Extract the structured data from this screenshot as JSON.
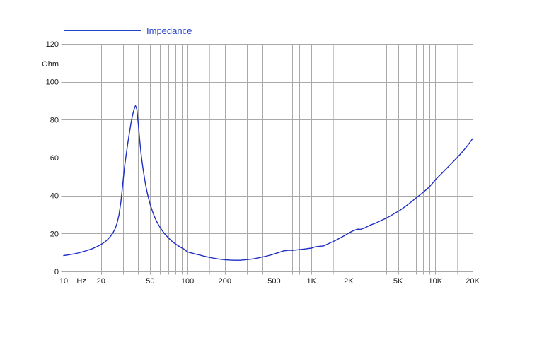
{
  "page": {
    "background": "#ffffff"
  },
  "legend": {
    "label": "Impedance",
    "color": "#2343cc"
  },
  "chart_data": {
    "type": "line",
    "title": "",
    "grid_on": true,
    "legend_position": "top-left",
    "grid_color": "#a9a9a9",
    "grid_color_light": "#c9c9c9",
    "tick_label_color": "#1a1a1a",
    "x_axis": {
      "scale": "log",
      "min": 10,
      "max": 20000,
      "unit_label": "Hz",
      "unit_label_at": 13.9,
      "ticks": [
        {
          "f": 10,
          "label": "10"
        },
        {
          "f": 20,
          "label": "20"
        },
        {
          "f": 50,
          "label": "50"
        },
        {
          "f": 100,
          "label": "100"
        },
        {
          "f": 200,
          "label": "200"
        },
        {
          "f": 500,
          "label": "500"
        },
        {
          "f": 1000,
          "label": "1K"
        },
        {
          "f": 2000,
          "label": "2K"
        },
        {
          "f": 5000,
          "label": "5K"
        },
        {
          "f": 10000,
          "label": "10K"
        },
        {
          "f": 20000,
          "label": "20K"
        }
      ],
      "gridlines": [
        10,
        15,
        20,
        30,
        40,
        50,
        60,
        70,
        80,
        90,
        100,
        150,
        200,
        300,
        400,
        500,
        600,
        700,
        800,
        900,
        1000,
        1500,
        2000,
        3000,
        4000,
        5000,
        6000,
        7000,
        8000,
        9000,
        10000,
        15000,
        20000
      ],
      "light_gridlines": [
        15,
        150,
        1500,
        15000
      ]
    },
    "y_axis": {
      "scale": "linear",
      "min": 0,
      "max": 120,
      "unit_label": "Ohm",
      "unit_label_at": 109.5,
      "ticks": [
        0,
        20,
        40,
        60,
        80,
        100,
        120
      ]
    },
    "series": [
      {
        "name": "Impedance",
        "color": "#1f2fc4",
        "points": [
          [
            10,
            8.4
          ],
          [
            11,
            8.8
          ],
          [
            12,
            9.2
          ],
          [
            13,
            9.7
          ],
          [
            14,
            10.2
          ],
          [
            15,
            10.8
          ],
          [
            16,
            11.4
          ],
          [
            17,
            12.0
          ],
          [
            18,
            12.7
          ],
          [
            19,
            13.4
          ],
          [
            20,
            14.2
          ],
          [
            21,
            15.1
          ],
          [
            22,
            16.1
          ],
          [
            23,
            17.3
          ],
          [
            24,
            18.7
          ],
          [
            25,
            20.4
          ],
          [
            26,
            22.5
          ],
          [
            27,
            25.5
          ],
          [
            28,
            30
          ],
          [
            29,
            37
          ],
          [
            30,
            46
          ],
          [
            31,
            55
          ],
          [
            32,
            62
          ],
          [
            33,
            68
          ],
          [
            34,
            73.5
          ],
          [
            35,
            78.5
          ],
          [
            36,
            82.5
          ],
          [
            37,
            85.5
          ],
          [
            38,
            87.4
          ],
          [
            39,
            85.5
          ],
          [
            40,
            78
          ],
          [
            41,
            70
          ],
          [
            42,
            63
          ],
          [
            43,
            57.5
          ],
          [
            44,
            52.8
          ],
          [
            45,
            48.8
          ],
          [
            46,
            45.3
          ],
          [
            47,
            42.2
          ],
          [
            48,
            39.6
          ],
          [
            49,
            37.3
          ],
          [
            50,
            35.2
          ],
          [
            52,
            31.8
          ],
          [
            54,
            29
          ],
          [
            56,
            26.7
          ],
          [
            58,
            24.8
          ],
          [
            60,
            23.2
          ],
          [
            63,
            21.2
          ],
          [
            66,
            19.5
          ],
          [
            70,
            17.7
          ],
          [
            74,
            16.2
          ],
          [
            78,
            15
          ],
          [
            83,
            13.8
          ],
          [
            88,
            12.7
          ],
          [
            93,
            11.9
          ],
          [
            100,
            10.3
          ],
          [
            107,
            9.8
          ],
          [
            115,
            9.2
          ],
          [
            125,
            8.7
          ],
          [
            135,
            8.1
          ],
          [
            150,
            7.4
          ],
          [
            165,
            6.9
          ],
          [
            180,
            6.5
          ],
          [
            200,
            6.2
          ],
          [
            220,
            6.0
          ],
          [
            240,
            5.9
          ],
          [
            265,
            5.9
          ],
          [
            290,
            6.1
          ],
          [
            320,
            6.4
          ],
          [
            350,
            6.8
          ],
          [
            390,
            7.4
          ],
          [
            430,
            8.0
          ],
          [
            470,
            8.7
          ],
          [
            510,
            9.4
          ],
          [
            550,
            10.1
          ],
          [
            600,
            10.9
          ],
          [
            660,
            11.2
          ],
          [
            700,
            11.1
          ],
          [
            750,
            11.3
          ],
          [
            800,
            11.5
          ],
          [
            850,
            11.7
          ],
          [
            900,
            11.9
          ],
          [
            950,
            12.1
          ],
          [
            1000,
            12.3
          ],
          [
            1080,
            13.0
          ],
          [
            1180,
            13.3
          ],
          [
            1260,
            13.5
          ],
          [
            1400,
            14.9
          ],
          [
            1550,
            16.2
          ],
          [
            1700,
            17.6
          ],
          [
            1850,
            18.9
          ],
          [
            2000,
            20.2
          ],
          [
            2150,
            21.3
          ],
          [
            2350,
            22.3
          ],
          [
            2500,
            22.2
          ],
          [
            2700,
            23.0
          ],
          [
            3000,
            24.5
          ],
          [
            3300,
            25.5
          ],
          [
            3600,
            26.7
          ],
          [
            4000,
            28
          ],
          [
            4400,
            29.5
          ],
          [
            4800,
            31
          ],
          [
            5200,
            32.3
          ],
          [
            5600,
            33.8
          ],
          [
            6000,
            35.2
          ],
          [
            6500,
            37
          ],
          [
            7000,
            38.8
          ],
          [
            7500,
            40.3
          ],
          [
            8000,
            41.8
          ],
          [
            8500,
            43.2
          ],
          [
            9000,
            44.8
          ],
          [
            9500,
            46.5
          ],
          [
            10000,
            48.3
          ],
          [
            10500,
            49.7
          ],
          [
            11000,
            51
          ],
          [
            12000,
            53.5
          ],
          [
            13000,
            55.8
          ],
          [
            14000,
            58
          ],
          [
            15000,
            60
          ],
          [
            16000,
            62
          ],
          [
            17000,
            64
          ],
          [
            18000,
            66
          ],
          [
            19000,
            68
          ],
          [
            20000,
            70
          ]
        ]
      }
    ]
  }
}
